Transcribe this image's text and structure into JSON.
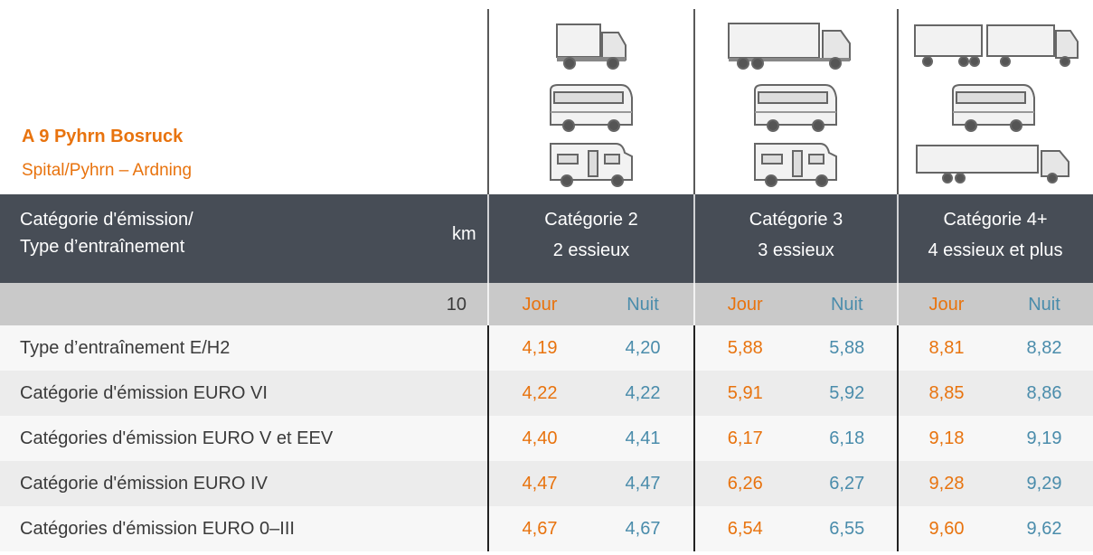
{
  "header": {
    "title": "A 9 Pyhrn Bosruck",
    "subtitle": "Spital/Pyhrn – Ardning"
  },
  "table": {
    "column_header": [
      "Catégorie d'émission/",
      "Type d’entraînement"
    ],
    "km_label": "km",
    "km_value": "10",
    "day_label": "Jour",
    "night_label": "Nuit",
    "categories": [
      {
        "name": "Catégorie 2",
        "axles": "2 essieux"
      },
      {
        "name": "Catégorie 3",
        "axles": "3 essieux"
      },
      {
        "name": "Catégorie 4+",
        "axles": "4 essieux et plus"
      }
    ],
    "rows": [
      {
        "label": "Type d’entraînement E/H2",
        "values": [
          "4,19",
          "4,20",
          "5,88",
          "5,88",
          "8,81",
          "8,82"
        ]
      },
      {
        "label": "Catégorie d'émission EURO VI",
        "values": [
          "4,22",
          "4,22",
          "5,91",
          "5,92",
          "8,85",
          "8,86"
        ]
      },
      {
        "label": "Catégories d'émission EURO V et EEV",
        "values": [
          "4,40",
          "4,41",
          "6,17",
          "6,18",
          "9,18",
          "9,19"
        ]
      },
      {
        "label": "Catégorie d'émission EURO IV",
        "values": [
          "4,47",
          "4,47",
          "6,26",
          "6,27",
          "9,28",
          "9,29"
        ]
      },
      {
        "label": "Catégories d'émission EURO 0–III",
        "values": [
          "4,67",
          "4,67",
          "6,54",
          "6,55",
          "9,60",
          "9,62"
        ]
      }
    ]
  }
}
